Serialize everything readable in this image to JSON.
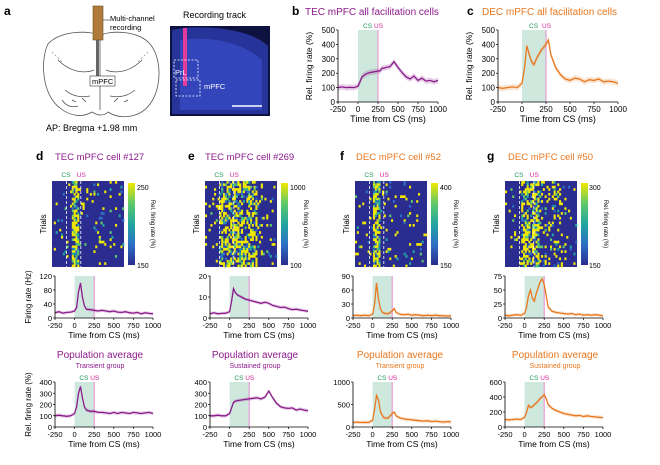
{
  "colors": {
    "tec": "#8b1a8b",
    "dec": "#e8771e",
    "cs": "#1e9a5a",
    "us": "#d6249c",
    "cs_shade": "#cfe8de",
    "us_line": "#e58cd0"
  },
  "panel_a": {
    "letter": "a",
    "rec_label": "Multi-channel\nrecording",
    "region": "mPFC",
    "coord": "AP: Bregma +1.98 mm",
    "track_title": "Recording track",
    "track_labels": [
      "PrL",
      "mPFC"
    ]
  },
  "panel_b": {
    "letter": "b",
    "title": "TEC mPFC all facilitation cells"
  },
  "panel_c": {
    "letter": "c",
    "title": "DEC mPFC all facilitation cells"
  },
  "panel_d": {
    "letter": "d",
    "title": "TEC mPFC cell #127",
    "cb_max": "250",
    "cb_min": "150",
    "ymax_label": "120"
  },
  "panel_e": {
    "letter": "e",
    "title": "TEC mPFC cell #269",
    "cb_max": "1000",
    "cb_min": "100"
  },
  "panel_f": {
    "letter": "f",
    "title": "DEC mPFC cell #52",
    "cb_max": "400",
    "cb_min": "150"
  },
  "panel_g": {
    "letter": "g",
    "title": "DEC mPFC cell #50",
    "cb_max": "300",
    "cb_min": "150"
  },
  "labels": {
    "cs": "CS",
    "us": "US",
    "trials": "Trials",
    "cb_label": "Rel. firing rate (%)",
    "xlabel": "Time from CS (ms)",
    "ylabel_rel": "Rel. firing rate (%)",
    "ylabel_hz": "Firing rate (Hz)",
    "pop_title": "Population average",
    "transient": "Transient group",
    "sustained": "Sustained group"
  },
  "chart_data": [
    {
      "id": "b",
      "type": "line",
      "title": "TEC mPFC all facilitation cells",
      "xlabel": "Time from CS (ms)",
      "ylabel": "Rel. firing rate (%)",
      "xlim": [
        -250,
        1000
      ],
      "ylim": [
        0,
        500
      ],
      "xticks": [
        -250,
        0,
        250,
        500,
        750,
        1000
      ],
      "yticks": [
        0,
        100,
        200,
        300,
        400,
        500
      ],
      "x": [
        -250,
        -200,
        -150,
        -100,
        -50,
        0,
        25,
        50,
        75,
        100,
        150,
        200,
        250,
        275,
        300,
        325,
        350,
        400,
        450,
        500,
        550,
        600,
        650,
        700,
        750,
        800,
        850,
        900,
        950,
        1000
      ],
      "y": [
        100,
        105,
        100,
        102,
        100,
        110,
        140,
        175,
        185,
        195,
        205,
        210,
        215,
        215,
        235,
        235,
        240,
        245,
        280,
        240,
        205,
        175,
        160,
        180,
        150,
        165,
        145,
        150,
        140,
        150
      ]
    },
    {
      "id": "c",
      "type": "line",
      "title": "DEC mPFC all facilitation cells",
      "xlabel": "Time from CS (ms)",
      "ylabel": "Rel. firing rate (%)",
      "xlim": [
        -250,
        1000
      ],
      "ylim": [
        0,
        500
      ],
      "xticks": [
        -250,
        0,
        250,
        500,
        750,
        1000
      ],
      "yticks": [
        0,
        100,
        200,
        300,
        400,
        500
      ],
      "x": [
        -250,
        -200,
        -150,
        -100,
        -50,
        0,
        25,
        50,
        75,
        100,
        125,
        150,
        200,
        250,
        275,
        300,
        350,
        400,
        450,
        500,
        550,
        600,
        650,
        700,
        750,
        800,
        850,
        900,
        950,
        1000
      ],
      "y": [
        100,
        95,
        100,
        105,
        100,
        130,
        230,
        390,
        330,
        280,
        260,
        300,
        360,
        400,
        430,
        330,
        240,
        190,
        160,
        150,
        165,
        160,
        140,
        155,
        150,
        160,
        140,
        145,
        140,
        130
      ]
    },
    {
      "id": "d",
      "type": "line",
      "xlabel": "Time from CS (ms)",
      "ylabel": "Firing rate (Hz)",
      "xlim": [
        -250,
        1000
      ],
      "ylim": [
        0,
        120
      ],
      "xticks": [
        -250,
        0,
        250,
        500,
        750,
        1000
      ],
      "yticks": [
        0,
        40,
        80,
        120
      ],
      "x": [
        -250,
        -200,
        -150,
        -100,
        -50,
        0,
        25,
        50,
        75,
        100,
        125,
        150,
        200,
        250,
        300,
        350,
        400,
        450,
        500,
        550,
        600,
        650,
        700,
        750,
        800,
        850,
        900,
        950,
        1000
      ],
      "y": [
        15,
        18,
        14,
        16,
        17,
        20,
        30,
        75,
        100,
        60,
        35,
        25,
        24,
        22,
        20,
        22,
        20,
        18,
        20,
        17,
        16,
        18,
        15,
        14,
        16,
        12,
        15,
        13,
        12
      ]
    },
    {
      "id": "e",
      "type": "line",
      "xlabel": "Time from CS (ms)",
      "ylabel": "Firing rate (Hz)",
      "xlim": [
        -250,
        1000
      ],
      "ylim": [
        0,
        20
      ],
      "xticks": [
        -250,
        0,
        250,
        500,
        750,
        1000
      ],
      "yticks": [
        0,
        10,
        20
      ],
      "x": [
        -250,
        -200,
        -150,
        -100,
        -50,
        0,
        25,
        50,
        75,
        100,
        150,
        200,
        250,
        300,
        350,
        400,
        450,
        500,
        550,
        600,
        650,
        700,
        750,
        800,
        850,
        900,
        950,
        1000
      ],
      "y": [
        2,
        2.5,
        2,
        2.2,
        2.3,
        3,
        8,
        14,
        12,
        11,
        10,
        9,
        8.5,
        8,
        7.5,
        7,
        7.5,
        7,
        6,
        5.5,
        5,
        5.2,
        4.5,
        4,
        4.2,
        3.8,
        3.5,
        3.2
      ]
    },
    {
      "id": "f",
      "type": "line",
      "xlabel": "Time from CS (ms)",
      "ylabel": "Firing rate (Hz)",
      "xlim": [
        -250,
        1000
      ],
      "ylim": [
        0,
        90
      ],
      "xticks": [
        -250,
        0,
        250,
        500,
        750,
        1000
      ],
      "yticks": [
        0,
        30,
        60,
        90
      ],
      "x": [
        -250,
        -200,
        -150,
        -100,
        -50,
        0,
        25,
        50,
        75,
        100,
        125,
        150,
        200,
        250,
        275,
        300,
        350,
        400,
        450,
        500,
        550,
        600,
        650,
        700,
        750,
        800,
        850,
        900,
        950,
        1000
      ],
      "y": [
        5,
        6,
        5,
        6,
        5,
        8,
        30,
        75,
        40,
        20,
        12,
        10,
        9,
        15,
        20,
        12,
        8,
        7,
        8,
        6,
        7,
        6,
        5,
        6,
        5,
        6,
        5,
        5,
        4,
        5
      ]
    },
    {
      "id": "g",
      "type": "line",
      "xlabel": "Time from CS (ms)",
      "ylabel": "Firing rate (Hz)",
      "xlim": [
        -250,
        1000
      ],
      "ylim": [
        0,
        75
      ],
      "xticks": [
        -250,
        0,
        250,
        500,
        750,
        1000
      ],
      "yticks": [
        0,
        25,
        50,
        75
      ],
      "x": [
        -250,
        -200,
        -150,
        -100,
        -50,
        0,
        25,
        50,
        75,
        100,
        125,
        150,
        200,
        225,
        250,
        275,
        300,
        350,
        400,
        450,
        500,
        550,
        600,
        650,
        700,
        750,
        800,
        850,
        900,
        950,
        1000
      ],
      "y": [
        5,
        4,
        5,
        6,
        5,
        8,
        20,
        40,
        50,
        35,
        30,
        45,
        65,
        70,
        60,
        40,
        20,
        12,
        10,
        9,
        8,
        7,
        8,
        6,
        7,
        5,
        6,
        5,
        6,
        5,
        4
      ]
    },
    {
      "id": "d_pop",
      "type": "line",
      "title": "Population average",
      "subtitle": "Transient group",
      "xlabel": "Time from CS (ms)",
      "ylabel": "Rel. firing rate (%)",
      "xlim": [
        -250,
        1000
      ],
      "ylim": [
        0,
        400
      ],
      "xticks": [
        -250,
        0,
        250,
        500,
        750,
        1000
      ],
      "yticks": [
        0,
        100,
        200,
        300,
        400
      ],
      "x": [
        -250,
        -200,
        -150,
        -100,
        -50,
        0,
        25,
        50,
        75,
        100,
        125,
        150,
        200,
        250,
        300,
        350,
        400,
        450,
        500,
        550,
        600,
        650,
        700,
        750,
        800,
        850,
        900,
        950,
        1000
      ],
      "y": [
        100,
        105,
        100,
        95,
        100,
        120,
        180,
        300,
        360,
        260,
        180,
        150,
        140,
        140,
        130,
        130,
        125,
        120,
        130,
        120,
        130,
        125,
        120,
        130,
        125,
        120,
        125,
        130,
        120
      ]
    },
    {
      "id": "e_pop",
      "type": "line",
      "title": "Population average",
      "subtitle": "Sustained group",
      "xlabel": "Time from CS (ms)",
      "ylabel": "Rel. firing rate (%)",
      "xlim": [
        -250,
        1000
      ],
      "ylim": [
        0,
        400
      ],
      "xticks": [
        -250,
        0,
        250,
        500,
        750,
        1000
      ],
      "yticks": [
        0,
        100,
        200,
        300,
        400
      ],
      "x": [
        -250,
        -200,
        -150,
        -100,
        -50,
        0,
        25,
        50,
        75,
        100,
        150,
        200,
        250,
        300,
        350,
        400,
        450,
        500,
        550,
        600,
        650,
        700,
        750,
        800,
        850,
        900,
        950,
        1000
      ],
      "y": [
        100,
        100,
        105,
        100,
        100,
        120,
        170,
        220,
        230,
        235,
        240,
        245,
        250,
        255,
        260,
        250,
        265,
        320,
        260,
        210,
        180,
        170,
        165,
        170,
        150,
        160,
        150,
        145
      ]
    },
    {
      "id": "f_pop",
      "type": "line",
      "title": "Population average",
      "subtitle": "Transient group",
      "xlabel": "Time from CS (ms)",
      "ylabel": "Rel. firing rate (%)",
      "xlim": [
        -250,
        1000
      ],
      "ylim": [
        0,
        1000
      ],
      "xticks": [
        -250,
        0,
        250,
        500,
        750,
        1000
      ],
      "yticks": [
        0,
        500,
        1000
      ],
      "x": [
        -250,
        -200,
        -150,
        -100,
        -50,
        0,
        25,
        50,
        75,
        100,
        125,
        150,
        200,
        250,
        275,
        300,
        350,
        400,
        450,
        500,
        550,
        600,
        650,
        700,
        750,
        800,
        850,
        900,
        950,
        1000
      ],
      "y": [
        100,
        110,
        100,
        105,
        100,
        150,
        400,
        700,
        600,
        350,
        250,
        200,
        200,
        300,
        330,
        250,
        200,
        180,
        170,
        160,
        150,
        140,
        130,
        140,
        120,
        130,
        120,
        110,
        120,
        115
      ]
    },
    {
      "id": "g_pop",
      "type": "line",
      "title": "Population average",
      "subtitle": "Sustained group",
      "xlabel": "Time from CS (ms)",
      "ylabel": "Rel. firing rate (%)",
      "xlim": [
        -250,
        1000
      ],
      "ylim": [
        0,
        600
      ],
      "xticks": [
        -250,
        0,
        250,
        500,
        750,
        1000
      ],
      "yticks": [
        0,
        200,
        400,
        600
      ],
      "x": [
        -250,
        -200,
        -150,
        -100,
        -50,
        0,
        25,
        50,
        75,
        100,
        125,
        150,
        200,
        250,
        275,
        300,
        350,
        400,
        450,
        500,
        550,
        600,
        650,
        700,
        750,
        800,
        850,
        900,
        950,
        1000
      ],
      "y": [
        100,
        95,
        100,
        105,
        100,
        130,
        200,
        290,
        260,
        270,
        300,
        320,
        380,
        430,
        380,
        300,
        250,
        220,
        200,
        180,
        170,
        160,
        150,
        155,
        140,
        150,
        140,
        135,
        130,
        125
      ]
    }
  ]
}
